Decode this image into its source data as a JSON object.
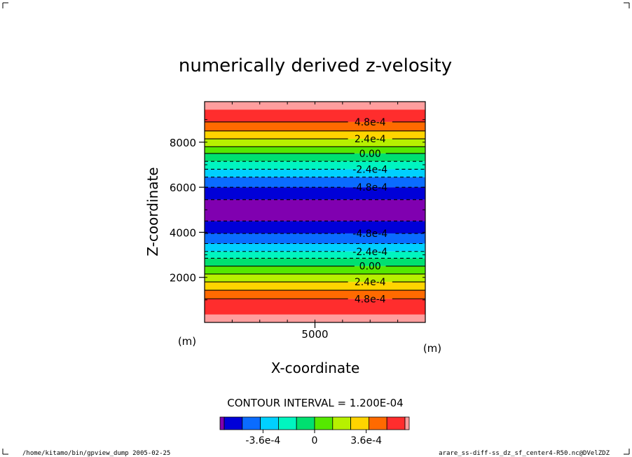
{
  "chart_data": {
    "type": "heatmap",
    "title": "numerically derived z-velosity",
    "xlabel": "X-coordinate",
    "ylabel": "Z-coordinate",
    "x_unit": "(m)",
    "y_unit": "(m)",
    "xlim": [
      1000,
      9000
    ],
    "ylim": [
      0,
      9800
    ],
    "x_ticks": [
      5000
    ],
    "y_ticks": [
      2000,
      4000,
      6000,
      8000
    ],
    "contour_interval_text": "CONTOUR INTERVAL = 1.200E-04",
    "bands": [
      {
        "z0": 0,
        "z1": 350,
        "color": "#ff9e9e"
      },
      {
        "z0": 350,
        "z1": 1050,
        "color": "#ff2d2d"
      },
      {
        "z0": 1050,
        "z1": 1430,
        "color": "#ff6a00"
      },
      {
        "z0": 1430,
        "z1": 1800,
        "color": "#ffd400"
      },
      {
        "z0": 1800,
        "z1": 2150,
        "color": "#b7f000"
      },
      {
        "z0": 2150,
        "z1": 2500,
        "color": "#55e800"
      },
      {
        "z0": 2500,
        "z1": 2850,
        "color": "#00e070"
      },
      {
        "z0": 2850,
        "z1": 3150,
        "color": "#00f5c0"
      },
      {
        "z0": 3150,
        "z1": 3500,
        "color": "#00d0ff"
      },
      {
        "z0": 3500,
        "z1": 3950,
        "color": "#0a6cff"
      },
      {
        "z0": 3950,
        "z1": 4500,
        "color": "#0000d8"
      },
      {
        "z0": 4500,
        "z1": 5450,
        "color": "#8000b0"
      },
      {
        "z0": 5450,
        "z1": 6000,
        "color": "#0000d8"
      },
      {
        "z0": 6000,
        "z1": 6450,
        "color": "#0a6cff"
      },
      {
        "z0": 6450,
        "z1": 6800,
        "color": "#00d0ff"
      },
      {
        "z0": 6800,
        "z1": 7150,
        "color": "#00f5c0"
      },
      {
        "z0": 7150,
        "z1": 7500,
        "color": "#00e070"
      },
      {
        "z0": 7500,
        "z1": 7800,
        "color": "#55e800"
      },
      {
        "z0": 7800,
        "z1": 8150,
        "color": "#b7f000"
      },
      {
        "z0": 8150,
        "z1": 8500,
        "color": "#ffd400"
      },
      {
        "z0": 8500,
        "z1": 8900,
        "color": "#ff6a00"
      },
      {
        "z0": 8900,
        "z1": 9450,
        "color": "#ff2d2d"
      },
      {
        "z0": 9450,
        "z1": 9800,
        "color": "#ff9e9e"
      }
    ],
    "contours": [
      {
        "z": 1050,
        "dashed": false,
        "label": "4.8e-4"
      },
      {
        "z": 1430,
        "dashed": false,
        "label": ""
      },
      {
        "z": 1800,
        "dashed": false,
        "label": "2.4e-4"
      },
      {
        "z": 2150,
        "dashed": false,
        "label": ""
      },
      {
        "z": 2500,
        "dashed": false,
        "label": "0.00"
      },
      {
        "z": 2850,
        "dashed": true,
        "label": ""
      },
      {
        "z": 3150,
        "dashed": true,
        "label": "-2.4e-4"
      },
      {
        "z": 3500,
        "dashed": true,
        "label": ""
      },
      {
        "z": 3950,
        "dashed": true,
        "label": "-4.8e-4"
      },
      {
        "z": 4500,
        "dashed": true,
        "label": ""
      },
      {
        "z": 5450,
        "dashed": true,
        "label": ""
      },
      {
        "z": 6000,
        "dashed": true,
        "label": "-4.8e-4"
      },
      {
        "z": 6450,
        "dashed": true,
        "label": ""
      },
      {
        "z": 6800,
        "dashed": true,
        "label": "-2.4e-4"
      },
      {
        "z": 7150,
        "dashed": true,
        "label": ""
      },
      {
        "z": 7500,
        "dashed": false,
        "label": "0.00"
      },
      {
        "z": 7800,
        "dashed": false,
        "label": ""
      },
      {
        "z": 8150,
        "dashed": false,
        "label": "2.4e-4"
      },
      {
        "z": 8500,
        "dashed": false,
        "label": ""
      },
      {
        "z": 8900,
        "dashed": false,
        "label": "4.8e-4"
      }
    ],
    "colorbar": {
      "colors": [
        "#8000b0",
        "#0000d8",
        "#0a6cff",
        "#00d0ff",
        "#00f5c0",
        "#00e070",
        "#55e800",
        "#b7f000",
        "#ffd400",
        "#ff6a00",
        "#ff2d2d",
        "#ff9e9e"
      ],
      "ticks": [
        {
          "value": -0.00036,
          "label": "-3.6e-4"
        },
        {
          "value": 0,
          "label": "0"
        },
        {
          "value": 0.00036,
          "label": "3.6e-4"
        }
      ],
      "range": [
        -0.00066,
        0.00066
      ]
    }
  },
  "footer": {
    "left": "/home/kitamo/bin/gpview_dump  2005-02-25",
    "right": "arare_ss-diff-ss_dz_sf_center4-R50.nc@DVelZDZ"
  }
}
